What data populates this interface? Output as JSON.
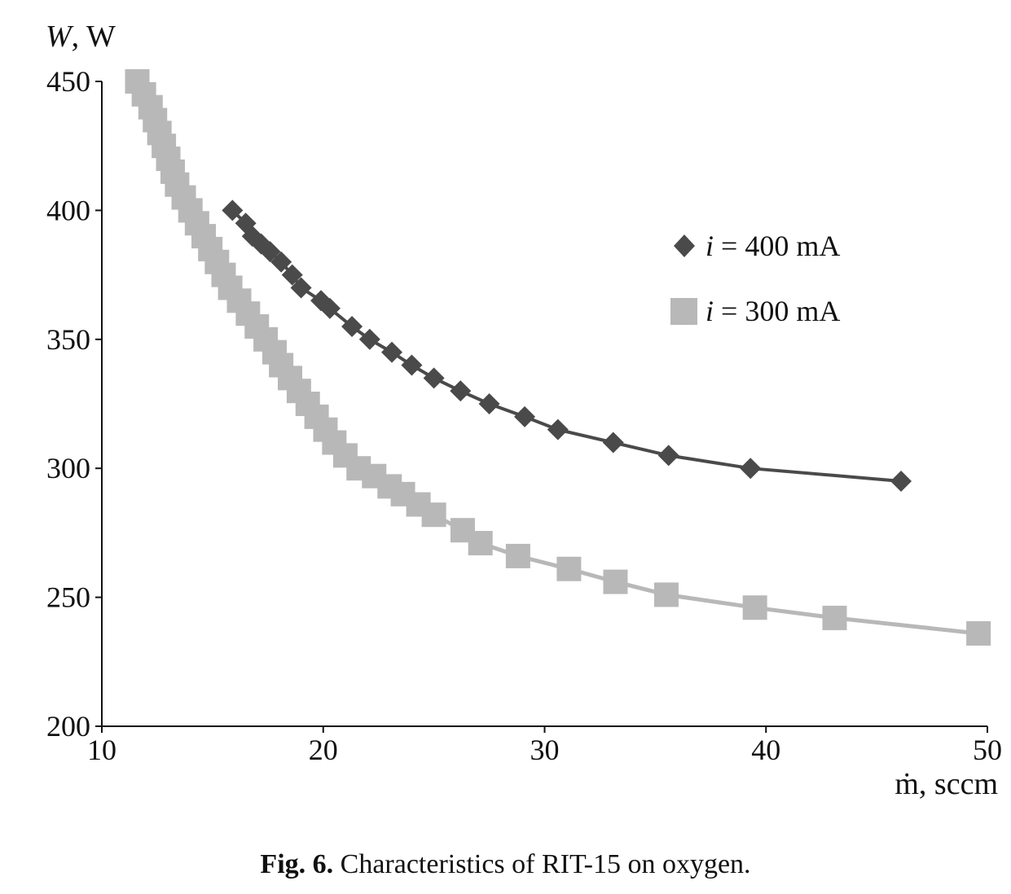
{
  "caption": {
    "label": "Fig. 6.",
    "text": "Characteristics of RIT-15 on oxygen."
  },
  "chart_data": {
    "type": "line",
    "title": "",
    "ylabel_var": "W",
    "ylabel_unit": ", W",
    "xlabel_var": "ṁ",
    "xlabel_unit": ", sccm",
    "xlim": [
      10,
      50
    ],
    "ylim": [
      200,
      450
    ],
    "xticks": [
      10,
      20,
      30,
      40,
      50
    ],
    "yticks": [
      200,
      250,
      300,
      350,
      400,
      450
    ],
    "grid": false,
    "legend_position": "top-right",
    "series": [
      {
        "name": "i = 400 mA",
        "name_var": "i",
        "name_rest": " = 400 mA",
        "marker": "diamond",
        "color": "#4a4a4a",
        "points": [
          [
            15.9,
            400
          ],
          [
            16.5,
            395
          ],
          [
            16.8,
            390
          ],
          [
            17.2,
            387
          ],
          [
            17.6,
            384
          ],
          [
            18.1,
            380
          ],
          [
            18.6,
            375
          ],
          [
            19.0,
            370
          ],
          [
            19.9,
            365
          ],
          [
            20.3,
            362
          ],
          [
            21.3,
            355
          ],
          [
            22.1,
            350
          ],
          [
            23.1,
            345
          ],
          [
            24.0,
            340
          ],
          [
            25.0,
            335
          ],
          [
            26.2,
            330
          ],
          [
            27.5,
            325
          ],
          [
            29.1,
            320
          ],
          [
            30.6,
            315
          ],
          [
            33.1,
            310
          ],
          [
            35.6,
            305
          ],
          [
            39.3,
            300
          ],
          [
            46.1,
            295
          ]
        ]
      },
      {
        "name": "i = 300 mA",
        "name_var": "i",
        "name_rest": " = 300 mA",
        "marker": "square",
        "color": "#b8b8b8",
        "points": [
          [
            11.6,
            450
          ],
          [
            11.9,
            445
          ],
          [
            12.2,
            440
          ],
          [
            12.4,
            435
          ],
          [
            12.6,
            430
          ],
          [
            12.8,
            425
          ],
          [
            13.0,
            420
          ],
          [
            13.2,
            415
          ],
          [
            13.4,
            410
          ],
          [
            13.7,
            405
          ],
          [
            14.0,
            400
          ],
          [
            14.3,
            395
          ],
          [
            14.6,
            390
          ],
          [
            14.9,
            385
          ],
          [
            15.2,
            380
          ],
          [
            15.5,
            375
          ],
          [
            15.8,
            370
          ],
          [
            16.2,
            365
          ],
          [
            16.6,
            360
          ],
          [
            17.0,
            355
          ],
          [
            17.4,
            350
          ],
          [
            17.8,
            345
          ],
          [
            18.1,
            340
          ],
          [
            18.5,
            335
          ],
          [
            18.9,
            330
          ],
          [
            19.3,
            325
          ],
          [
            19.7,
            320
          ],
          [
            20.1,
            315
          ],
          [
            20.5,
            310
          ],
          [
            21.0,
            305
          ],
          [
            21.6,
            300
          ],
          [
            22.3,
            297
          ],
          [
            23.0,
            293
          ],
          [
            23.6,
            290
          ],
          [
            24.3,
            286
          ],
          [
            25.0,
            282
          ],
          [
            26.3,
            276
          ],
          [
            27.1,
            271
          ],
          [
            28.8,
            266
          ],
          [
            31.1,
            261
          ],
          [
            33.2,
            256
          ],
          [
            35.5,
            251
          ],
          [
            39.5,
            246
          ],
          [
            43.1,
            242
          ],
          [
            49.6,
            236
          ]
        ]
      }
    ]
  }
}
